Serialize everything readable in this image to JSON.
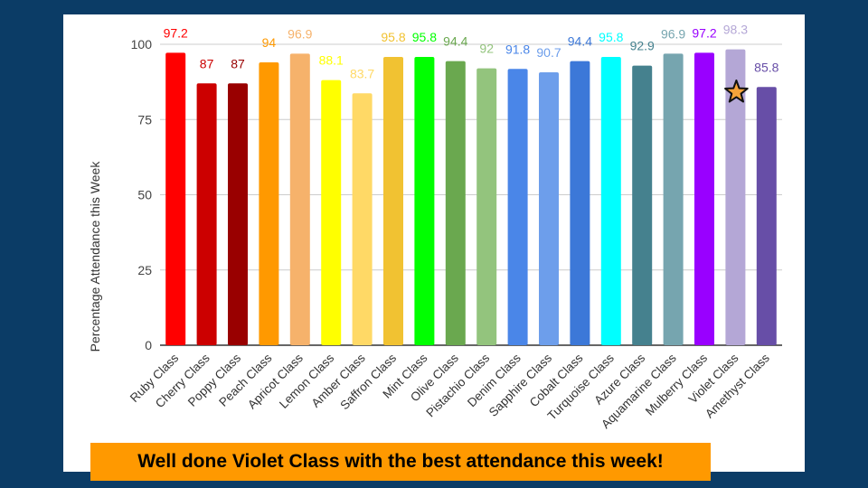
{
  "chart_data": {
    "type": "bar",
    "ylabel": "Percentage Attendance this Week",
    "xlabel": "",
    "ylim": [
      0,
      100
    ],
    "yticks": [
      0,
      25,
      50,
      75,
      100
    ],
    "grid": true,
    "categories": [
      "Ruby Class",
      "Cherry Class",
      "Poppy Class",
      "Peach Class",
      "Apricot Class",
      "Lemon Class",
      "Amber Class",
      "Saffron Class",
      "Mint Class",
      "Olive Class",
      "Pistachio Class",
      "Denim Class",
      "Sapphire Class",
      "Cobalt Class",
      "Turquoise Class",
      "Azure Class",
      "Aquamarine Class",
      "Mulberry Class",
      "Violet Class",
      "Amethyst Class"
    ],
    "values": [
      97.2,
      87,
      87,
      94,
      96.9,
      88.1,
      83.7,
      95.8,
      95.8,
      94.4,
      92,
      91.8,
      90.7,
      94.4,
      95.8,
      92.9,
      96.9,
      97.2,
      98.3,
      85.8
    ],
    "colors": [
      "#ff0000",
      "#cc0000",
      "#990000",
      "#ff9900",
      "#f6b26b",
      "#ffff00",
      "#ffd966",
      "#f1c232",
      "#00ff00",
      "#6aa84f",
      "#93c47d",
      "#4a86e8",
      "#6d9eeb",
      "#3c78d8",
      "#00ffff",
      "#45818e",
      "#76a5af",
      "#9900ff",
      "#b4a7d6",
      "#674ea7"
    ],
    "highlight": {
      "category": "Violet Class",
      "marker": "star-icon",
      "color": "#f6a33a"
    }
  },
  "banner": {
    "text": "Well done Violet Class with the best attendance this week!"
  }
}
